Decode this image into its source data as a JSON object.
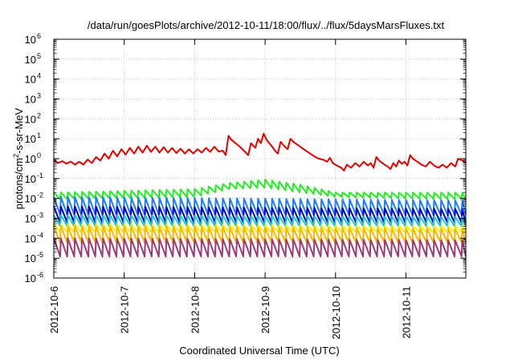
{
  "chart_data": {
    "type": "line",
    "title": "/data/run/goesPlots/archive/2012-10-11/18:00/flux/../flux/5daysMarsFluxes.txt",
    "xlabel": "Coordinated Universal Time (UTC)",
    "ylabel_parts": {
      "base": "protons/cm",
      "sup": "2",
      "rest": "-s-sr-MeV"
    },
    "x_range_days": [
      0,
      5.85
    ],
    "x_ticks": [
      {
        "label": "2012-10-6",
        "day": 0
      },
      {
        "label": "2012-10-7",
        "day": 1
      },
      {
        "label": "2012-10-8",
        "day": 2
      },
      {
        "label": "2012-10-9",
        "day": 3
      },
      {
        "label": "2012-10-10",
        "day": 4
      },
      {
        "label": "2012-10-11",
        "day": 5
      }
    ],
    "y_scale": "log",
    "y_range_exp": [
      -6,
      6
    ],
    "y_ticks": [
      {
        "base": "10",
        "exp": "6"
      },
      {
        "base": "10",
        "exp": "5"
      },
      {
        "base": "10",
        "exp": "4"
      },
      {
        "base": "10",
        "exp": "3"
      },
      {
        "base": "10",
        "exp": "2"
      },
      {
        "base": "10",
        "exp": "1"
      },
      {
        "base": "10",
        "exp": "0"
      },
      {
        "base": "10",
        "exp": "-1"
      },
      {
        "base": "10",
        "exp": "-2"
      },
      {
        "base": "10",
        "exp": "-3"
      },
      {
        "base": "10",
        "exp": "-4"
      },
      {
        "base": "10",
        "exp": "-5"
      },
      {
        "base": "10",
        "exp": "-6"
      }
    ],
    "grid": true,
    "series": [
      {
        "color": "#e00000",
        "points": [
          [
            0.0,
            0.85
          ],
          [
            0.06,
            0.6
          ],
          [
            0.12,
            0.75
          ],
          [
            0.18,
            0.55
          ],
          [
            0.24,
            0.72
          ],
          [
            0.3,
            0.5
          ],
          [
            0.36,
            0.7
          ],
          [
            0.42,
            0.5
          ],
          [
            0.48,
            0.9
          ],
          [
            0.54,
            0.6
          ],
          [
            0.6,
            1.2
          ],
          [
            0.66,
            0.8
          ],
          [
            0.72,
            1.8
          ],
          [
            0.78,
            1.0
          ],
          [
            0.84,
            2.5
          ],
          [
            0.9,
            1.3
          ],
          [
            0.96,
            3.0
          ],
          [
            1.02,
            1.6
          ],
          [
            1.08,
            3.5
          ],
          [
            1.14,
            1.8
          ],
          [
            1.2,
            4.0
          ],
          [
            1.26,
            2.0
          ],
          [
            1.32,
            4.5
          ],
          [
            1.38,
            2.2
          ],
          [
            1.44,
            4.0
          ],
          [
            1.5,
            2.0
          ],
          [
            1.56,
            3.8
          ],
          [
            1.62,
            2.0
          ],
          [
            1.68,
            3.5
          ],
          [
            1.74,
            1.9
          ],
          [
            1.8,
            3.2
          ],
          [
            1.86,
            1.8
          ],
          [
            1.92,
            3.0
          ],
          [
            1.98,
            1.8
          ],
          [
            2.04,
            3.0
          ],
          [
            2.1,
            2.0
          ],
          [
            2.16,
            3.5
          ],
          [
            2.22,
            2.2
          ],
          [
            2.28,
            4.0
          ],
          [
            2.34,
            2.3
          ],
          [
            2.4,
            2.5
          ],
          [
            2.44,
            1.5
          ],
          [
            2.48,
            14
          ],
          [
            2.52,
            9
          ],
          [
            2.58,
            6
          ],
          [
            2.64,
            4
          ],
          [
            2.7,
            2.5
          ],
          [
            2.76,
            1.5
          ],
          [
            2.8,
            6
          ],
          [
            2.86,
            3.5
          ],
          [
            2.9,
            10
          ],
          [
            2.94,
            6
          ],
          [
            2.98,
            18
          ],
          [
            3.02,
            9
          ],
          [
            3.06,
            6
          ],
          [
            3.1,
            4
          ],
          [
            3.14,
            2.5
          ],
          [
            3.18,
            1.8
          ],
          [
            3.22,
            7
          ],
          [
            3.28,
            4
          ],
          [
            3.32,
            3
          ],
          [
            3.36,
            10
          ],
          [
            3.4,
            7
          ],
          [
            3.46,
            5
          ],
          [
            3.52,
            3.5
          ],
          [
            3.58,
            2.5
          ],
          [
            3.64,
            1.8
          ],
          [
            3.7,
            1.3
          ],
          [
            3.76,
            1.0
          ],
          [
            3.82,
            0.9
          ],
          [
            3.88,
            0.7
          ],
          [
            3.92,
            1.1
          ],
          [
            3.96,
            0.6
          ],
          [
            4.02,
            0.45
          ],
          [
            4.08,
            0.35
          ],
          [
            4.12,
            0.25
          ],
          [
            4.16,
            0.5
          ],
          [
            4.22,
            0.35
          ],
          [
            4.28,
            0.6
          ],
          [
            4.34,
            0.4
          ],
          [
            4.4,
            0.7
          ],
          [
            4.46,
            0.45
          ],
          [
            4.5,
            0.6
          ],
          [
            4.54,
            0.35
          ],
          [
            4.58,
            1.2
          ],
          [
            4.62,
            0.8
          ],
          [
            4.68,
            0.55
          ],
          [
            4.74,
            0.4
          ],
          [
            4.78,
            0.3
          ],
          [
            4.82,
            0.6
          ],
          [
            4.86,
            0.4
          ],
          [
            4.9,
            0.8
          ],
          [
            4.94,
            0.55
          ],
          [
            4.98,
            0.7
          ],
          [
            5.02,
            0.45
          ],
          [
            5.06,
            1.5
          ],
          [
            5.1,
            1.0
          ],
          [
            5.16,
            0.7
          ],
          [
            5.22,
            0.5
          ],
          [
            5.28,
            0.4
          ],
          [
            5.34,
            0.7
          ],
          [
            5.4,
            0.45
          ],
          [
            5.46,
            0.35
          ],
          [
            5.52,
            0.5
          ],
          [
            5.58,
            0.35
          ],
          [
            5.64,
            0.6
          ],
          [
            5.7,
            0.4
          ],
          [
            5.74,
            1.0
          ],
          [
            5.8,
            0.8
          ],
          [
            5.85,
            0.6
          ]
        ]
      },
      {
        "color": "#22ee22",
        "teeth": {
          "period": 0.1,
          "start": 0.0,
          "end": 5.85,
          "low": [
            [
              0,
              0.009
            ],
            [
              2.0,
              0.012
            ],
            [
              2.5,
              0.03
            ],
            [
              3.0,
              0.035
            ],
            [
              3.5,
              0.02
            ],
            [
              4.0,
              0.012
            ],
            [
              5.0,
              0.01
            ],
            [
              5.85,
              0.009
            ]
          ],
          "high": [
            [
              0,
              0.02
            ],
            [
              2.0,
              0.03
            ],
            [
              2.5,
              0.06
            ],
            [
              3.0,
              0.09
            ],
            [
              3.5,
              0.05
            ],
            [
              4.0,
              0.02
            ],
            [
              5.0,
              0.02
            ],
            [
              5.85,
              0.02
            ]
          ]
        }
      },
      {
        "color": "#1e7cff",
        "teeth": {
          "period": 0.1,
          "start": 0.0,
          "end": 5.85,
          "low": [
            [
              0,
              0.0015
            ],
            [
              5.85,
              0.0015
            ]
          ],
          "high": [
            [
              0,
              0.012
            ],
            [
              5.85,
              0.008
            ]
          ]
        }
      },
      {
        "color": "#0000cc",
        "teeth": {
          "period": 0.1,
          "start": 0.0,
          "end": 5.85,
          "low": [
            [
              0,
              0.0006
            ],
            [
              5.85,
              0.0006
            ]
          ],
          "high": [
            [
              0,
              0.004
            ],
            [
              5.85,
              0.003
            ]
          ]
        }
      },
      {
        "color": "#20c8c0",
        "teeth": {
          "period": 0.1,
          "start": 0.0,
          "end": 5.85,
          "low": [
            [
              0,
              0.0004
            ],
            [
              5.85,
              0.0004
            ]
          ],
          "high": [
            [
              0,
              0.0015
            ],
            [
              5.85,
              0.0012
            ]
          ]
        }
      },
      {
        "color": "#f0f000",
        "teeth": {
          "period": 0.1,
          "start": 0.0,
          "end": 5.85,
          "low": [
            [
              0,
              0.0002
            ],
            [
              5.85,
              0.0002
            ]
          ],
          "high": [
            [
              0,
              0.0005
            ],
            [
              5.85,
              0.0004
            ]
          ]
        }
      },
      {
        "color": "#ffb400",
        "teeth": {
          "period": 0.1,
          "start": 0.0,
          "end": 5.85,
          "low": [
            [
              0,
              6e-05
            ],
            [
              5.85,
              6e-05
            ]
          ],
          "high": [
            [
              0,
              0.0004
            ],
            [
              5.85,
              0.0003
            ]
          ]
        }
      },
      {
        "color": "#9b3a78",
        "teeth": {
          "period": 0.1,
          "start": 0.0,
          "end": 5.85,
          "low": [
            [
              0,
              1.2e-05
            ],
            [
              5.85,
              1.2e-05
            ]
          ],
          "high": [
            [
              0,
              0.0001
            ],
            [
              5.85,
              8e-05
            ]
          ]
        }
      }
    ]
  }
}
